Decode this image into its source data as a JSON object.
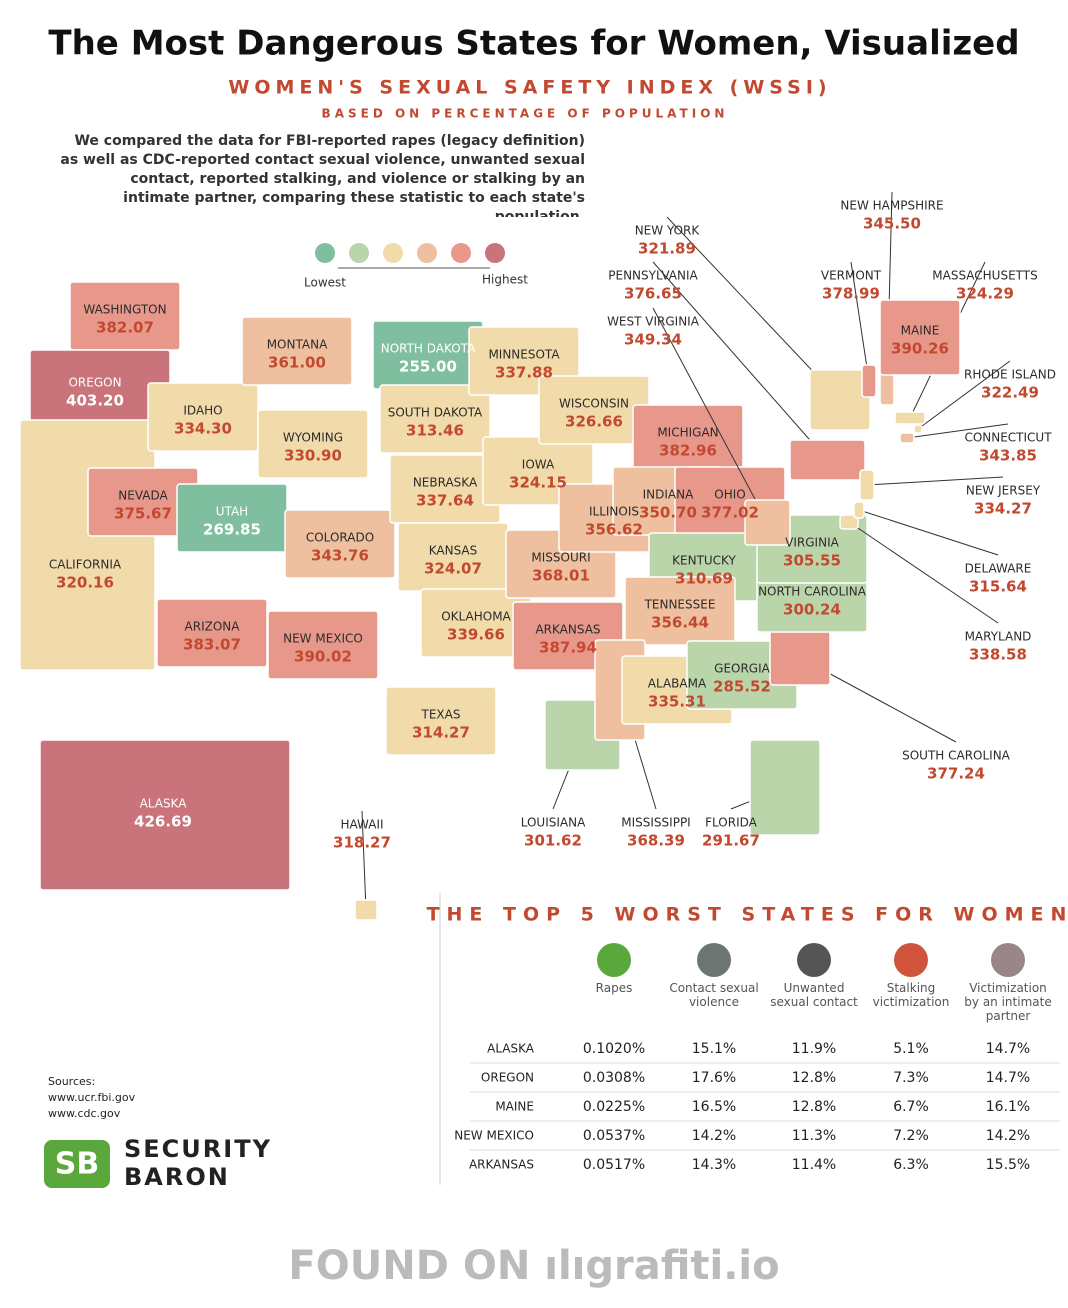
{
  "chart_data": {
    "type": "map",
    "title": "The Most Dangerous States for Women, Visualized",
    "subtitle": "WOMEN'S SEXUAL SAFETY INDEX (WSSI)",
    "subsubtitle": "BASED ON PERCENTAGE OF POPULATION",
    "intro": "We compared the data for FBI-reported rapes (legacy definition) as well as CDC-reported contact sexual violence, unwanted sexual contact, reported stalking, and violence or stalking by an intimate partner, comparing these statistic to each state's population.",
    "legend": {
      "colors": [
        "#7fbf9f",
        "#b9d5a9",
        "#f1dbaa",
        "#eec09f",
        "#e8988b",
        "#c9737b"
      ],
      "low": "Lowest",
      "high": "Highest"
    },
    "categories": [
      "WASHINGTON",
      "OREGON",
      "CALIFORNIA",
      "NEVADA",
      "IDAHO",
      "MONTANA",
      "WYOMING",
      "UTAH",
      "COLORADO",
      "ARIZONA",
      "NEW MEXICO",
      "NORTH DAKOTA",
      "SOUTH DAKOTA",
      "NEBRASKA",
      "KANSAS",
      "OKLAHOMA",
      "TEXAS",
      "MINNESOTA",
      "IOWA",
      "MISSOURI",
      "ARKANSAS",
      "LOUISIANA",
      "WISCONSIN",
      "ILLINOIS",
      "MICHIGAN",
      "INDIANA",
      "OHIO",
      "KENTUCKY",
      "TENNESSEE",
      "MISSISSIPPI",
      "ALABAMA",
      "GEORGIA",
      "FLORIDA",
      "SOUTH CAROLINA",
      "NORTH CAROLINA",
      "VIRGINIA",
      "WEST VIRGINIA",
      "PENNSYLVANIA",
      "NEW YORK",
      "MARYLAND",
      "DELAWARE",
      "NEW JERSEY",
      "CONNECTICUT",
      "RHODE ISLAND",
      "MASSACHUSETTS",
      "VERMONT",
      "NEW HAMPSHIRE",
      "MAINE",
      "ALASKA",
      "HAWAII"
    ],
    "values": [
      382.07,
      403.2,
      320.16,
      375.67,
      334.3,
      361,
      330.9,
      269.85,
      343.76,
      383.07,
      390.02,
      255,
      313.46,
      337.64,
      324.07,
      339.66,
      314.27,
      337.88,
      324.15,
      368.01,
      387.94,
      301.62,
      326.66,
      356.62,
      382.96,
      350.7,
      377.02,
      310.69,
      356.44,
      368.39,
      335.31,
      285.52,
      291.67,
      377.24,
      300.24,
      305.55,
      349.34,
      376.65,
      321.89,
      338.58,
      315.64,
      334.27,
      343.85,
      322.49,
      324.29,
      378.99,
      345.5,
      390.26,
      426.69,
      318.27
    ],
    "value_labels": [
      "382.07",
      "403.20",
      "320.16",
      "375.67",
      "334.30",
      "361.00",
      "330.90",
      "269.85",
      "343.76",
      "383.07",
      "390.02",
      "255.00",
      "313.46",
      "337.64",
      "324.07",
      "339.66",
      "314.27",
      "337.88",
      "324.15",
      "368.01",
      "387.94",
      "301.62",
      "326.66",
      "356.62",
      "382.96",
      "350.70",
      "377.02",
      "310.69",
      "356.44",
      "368.39",
      "335.31",
      "285.52",
      "291.67",
      "377.24",
      "300.24",
      "305.55",
      "349.34",
      "376.65",
      "321.89",
      "338.58",
      "315.64",
      "334.27",
      "343.85",
      "322.49",
      "324.29",
      "378.99",
      "345.50",
      "390.26",
      "426.69",
      "318.27"
    ]
  },
  "table": {
    "title": "THE TOP 5 WORST STATES FOR WOMEN",
    "columns": [
      "Rapes",
      "Contact sexual violence",
      "Unwanted sexual contact",
      "Stalking victimization",
      "Victimization by an intimate partner"
    ],
    "rows": [
      [
        "ALASKA",
        "0.1020%",
        "15.1%",
        "11.9%",
        "5.1%",
        "14.7%"
      ],
      [
        "OREGON",
        "0.0308%",
        "17.6%",
        "12.8%",
        "7.3%",
        "14.7%"
      ],
      [
        "MAINE",
        "0.0225%",
        "16.5%",
        "12.8%",
        "6.7%",
        "16.1%"
      ],
      [
        "NEW MEXICO",
        "0.0537%",
        "14.2%",
        "11.3%",
        "7.2%",
        "14.2%"
      ],
      [
        "ARKANSAS",
        "0.0517%",
        "14.3%",
        "11.4%",
        "6.3%",
        "15.5%"
      ]
    ]
  },
  "sources": {
    "label": "Sources:",
    "items": [
      "www.ucr.fbi.gov",
      "www.cdc.gov"
    ]
  },
  "logo": {
    "mark": "SB",
    "line1": "SECURITY",
    "line2": "BARON"
  },
  "watermark": "FOUND ON ılıgrafiti.io"
}
